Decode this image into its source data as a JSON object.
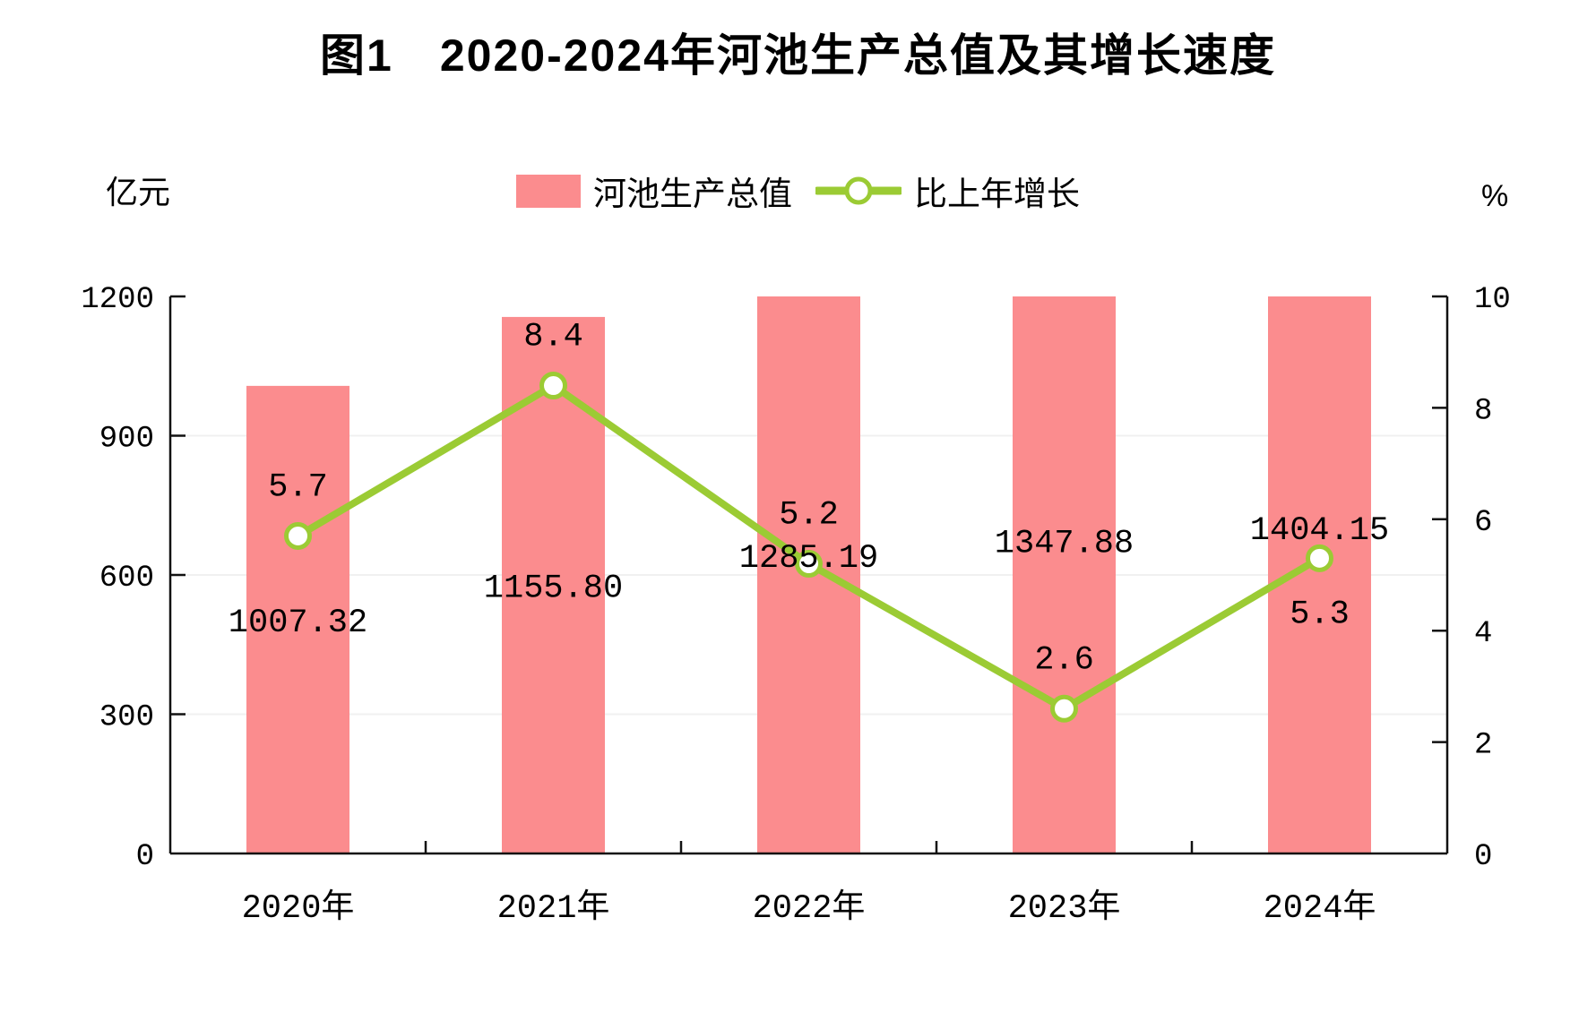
{
  "title": "图1　2020-2024年河池生产总值及其增长速度",
  "unit_left": "亿元",
  "unit_right": "%",
  "legend": {
    "bar_label": "河池生产总值",
    "line_label": "比上年增长"
  },
  "colors": {
    "bar": "#FB8C8E",
    "line": "#9BCB34",
    "marker_fill": "#FFFFFF",
    "grid": "#F0F0F0",
    "axis": "#111111",
    "text": "#000000",
    "background": "#FFFFFF"
  },
  "chart_data": {
    "type": "bar+line",
    "title": "图1　2020-2024年河池生产总值及其增长速度",
    "categories": [
      "2020年",
      "2021年",
      "2022年",
      "2023年",
      "2024年"
    ],
    "series": [
      {
        "name": "河池生产总值",
        "type": "bar",
        "axis": "left",
        "unit": "亿元",
        "values": [
          1007.32,
          1155.8,
          1285.19,
          1347.88,
          1404.15
        ],
        "labels": [
          "1007.32",
          "1155.80",
          "1285.19",
          "1347.88",
          "1404.15"
        ]
      },
      {
        "name": "比上年增长",
        "type": "line",
        "axis": "right",
        "unit": "%",
        "values": [
          5.7,
          8.4,
          5.2,
          2.6,
          5.3
        ],
        "labels": [
          "5.7",
          "8.4",
          "5.2",
          "2.6",
          "5.3"
        ],
        "label_side": [
          "above",
          "above",
          "above",
          "above",
          "below"
        ]
      }
    ],
    "left_axis": {
      "title": "亿元",
      "range": [
        0,
        1200
      ],
      "ticks": [
        0,
        300,
        600,
        900,
        1200
      ],
      "tick_labels": [
        "0",
        "300",
        "600",
        "900",
        "1200"
      ]
    },
    "right_axis": {
      "title": "%",
      "range": [
        0,
        10
      ],
      "ticks": [
        0,
        2,
        4,
        6,
        8,
        10
      ],
      "tick_labels": [
        "0",
        "2",
        "4",
        "6",
        "8",
        "10"
      ]
    },
    "bars_clipped_at_axis_max": true,
    "grid": "horizontal-light",
    "legend_position": "top-center"
  }
}
